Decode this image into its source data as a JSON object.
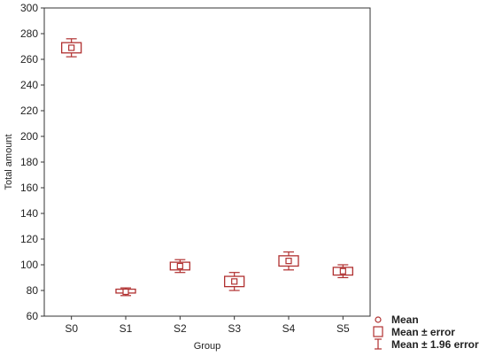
{
  "chart_data": {
    "type": "box",
    "title": "",
    "xlabel": "Group",
    "ylabel": "Total amount",
    "ylim": [
      60,
      300
    ],
    "yticks": [
      60,
      80,
      100,
      120,
      140,
      160,
      180,
      200,
      220,
      240,
      260,
      280,
      300
    ],
    "categories": [
      "S0",
      "S1",
      "S2",
      "S3",
      "S4",
      "S5"
    ],
    "series": [
      {
        "mean": [
          269,
          79,
          99,
          87,
          103,
          95
        ],
        "error_low": [
          265,
          78,
          96,
          83,
          99,
          92
        ],
        "error_high": [
          273,
          81,
          102,
          91,
          107,
          98
        ],
        "ci_low": [
          262,
          76,
          94,
          80,
          96,
          90
        ],
        "ci_high": [
          276,
          82,
          104,
          94,
          110,
          100
        ]
      }
    ],
    "legend": {
      "position": "bottom-right",
      "items": [
        {
          "symbol": "circle",
          "label": "Mean"
        },
        {
          "symbol": "box",
          "label": "Mean ± error"
        },
        {
          "symbol": "whisker",
          "label": "Mean ± 1.96 error"
        }
      ]
    },
    "grid": false,
    "color": "#b03030"
  }
}
